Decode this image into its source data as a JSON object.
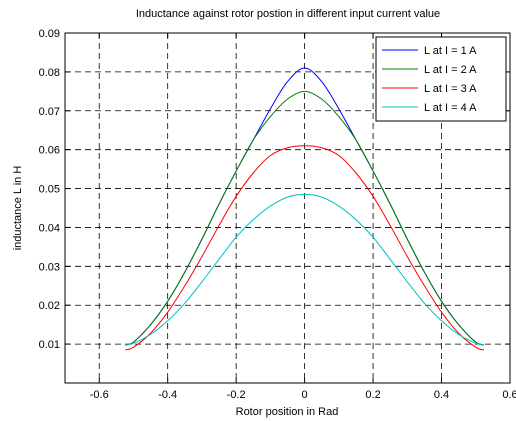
{
  "chart_data": {
    "type": "line",
    "title": "Inductance against rotor postion in different input current value",
    "xlabel": "Rotor position in Rad",
    "ylabel": "inductance L in H",
    "xlim": [
      -0.7,
      0.6
    ],
    "ylim": [
      0.0,
      0.09
    ],
    "xticks": [
      -0.6,
      -0.4,
      -0.2,
      0,
      0.2,
      0.4,
      0.6
    ],
    "xtick_labels": [
      "-0.6",
      "-0.4",
      "-0.2",
      "0",
      "0.2",
      "0.4",
      "0.6"
    ],
    "yticks": [
      0.01,
      0.02,
      0.03,
      0.04,
      0.05,
      0.06,
      0.07,
      0.08,
      0.09
    ],
    "ytick_labels": [
      "0.01",
      "0.02",
      "0.03",
      "0.04",
      "0.05",
      "0.06",
      "0.07",
      "0.08",
      "0.09"
    ],
    "grid": true,
    "legend_position": "top-right",
    "series": [
      {
        "name": "L at I = 1 A",
        "color": "#0000ff",
        "x": [
          -0.524,
          -0.5,
          -0.45,
          -0.4,
          -0.35,
          -0.3,
          -0.25,
          -0.2,
          -0.15,
          -0.1,
          -0.05,
          0,
          0.05,
          0.1,
          0.15,
          0.2,
          0.25,
          0.3,
          0.35,
          0.4,
          0.45,
          0.5,
          0.524
        ],
        "y": [
          0.0098,
          0.0105,
          0.015,
          0.021,
          0.0285,
          0.037,
          0.046,
          0.0545,
          0.0625,
          0.0705,
          0.0775,
          0.081,
          0.0775,
          0.0705,
          0.0625,
          0.0545,
          0.046,
          0.037,
          0.0285,
          0.021,
          0.015,
          0.0105,
          0.0098
        ]
      },
      {
        "name": "L at I = 2 A",
        "color": "#008000",
        "x": [
          -0.524,
          -0.5,
          -0.45,
          -0.4,
          -0.35,
          -0.3,
          -0.25,
          -0.2,
          -0.15,
          -0.1,
          -0.05,
          0,
          0.05,
          0.1,
          0.15,
          0.2,
          0.25,
          0.3,
          0.35,
          0.4,
          0.45,
          0.5,
          0.524
        ],
        "y": [
          0.0098,
          0.0105,
          0.015,
          0.021,
          0.0285,
          0.037,
          0.046,
          0.0545,
          0.0625,
          0.0685,
          0.073,
          0.075,
          0.073,
          0.0685,
          0.0625,
          0.0545,
          0.046,
          0.037,
          0.0285,
          0.021,
          0.015,
          0.0105,
          0.0098
        ]
      },
      {
        "name": "L at I = 3 A",
        "color": "#ff0000",
        "x": [
          -0.524,
          -0.5,
          -0.45,
          -0.4,
          -0.35,
          -0.3,
          -0.25,
          -0.2,
          -0.15,
          -0.1,
          -0.05,
          0,
          0.05,
          0.1,
          0.15,
          0.2,
          0.25,
          0.3,
          0.35,
          0.4,
          0.45,
          0.5,
          0.524
        ],
        "y": [
          0.0085,
          0.0092,
          0.0128,
          0.0182,
          0.025,
          0.0325,
          0.0405,
          0.048,
          0.054,
          0.0585,
          0.0605,
          0.061,
          0.0605,
          0.0585,
          0.054,
          0.048,
          0.0405,
          0.0325,
          0.025,
          0.0182,
          0.0128,
          0.0092,
          0.0085
        ]
      },
      {
        "name": "L at I = 4 A",
        "color": "#00bfbf",
        "x": [
          -0.524,
          -0.5,
          -0.45,
          -0.4,
          -0.35,
          -0.3,
          -0.25,
          -0.2,
          -0.15,
          -0.1,
          -0.05,
          0,
          0.05,
          0.1,
          0.15,
          0.2,
          0.25,
          0.3,
          0.35,
          0.4,
          0.45,
          0.5,
          0.524
        ],
        "y": [
          0.0098,
          0.0102,
          0.0125,
          0.016,
          0.0205,
          0.026,
          0.0318,
          0.0375,
          0.042,
          0.0455,
          0.0478,
          0.0485,
          0.0478,
          0.0455,
          0.042,
          0.0375,
          0.0318,
          0.026,
          0.0205,
          0.016,
          0.0125,
          0.0102,
          0.0098
        ]
      }
    ]
  }
}
